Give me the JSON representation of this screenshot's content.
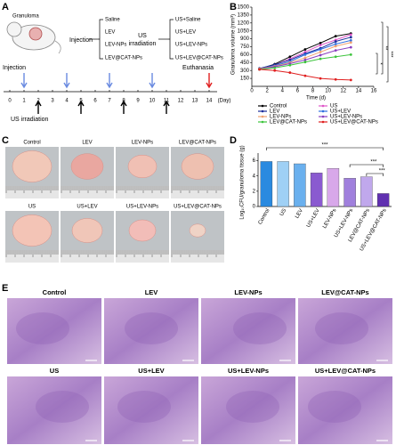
{
  "panel_labels": [
    "A",
    "B",
    "C",
    "D",
    "E"
  ],
  "panel_a": {
    "mouse_label": "Granuloma",
    "injection": "Injection",
    "groups": [
      "Saline",
      "LEV",
      "LEV-NPs",
      "LEV@CAT-NPs"
    ],
    "us_irradiation": [
      "US",
      "irradiation"
    ],
    "us_groups": [
      "US+Saline",
      "US+LEV",
      "US+LEV-NPs",
      "US+LEV@CAT-NPs"
    ],
    "timeline": {
      "days": [
        0,
        1,
        2,
        3,
        4,
        5,
        6,
        7,
        8,
        9,
        10,
        11,
        12,
        13,
        14
      ],
      "unit": "(Day)",
      "injection_label": "Injection",
      "us_label": "US irradiation",
      "euthanasia_label": "Euthanasia",
      "injection_days": [
        1,
        4,
        7,
        10
      ],
      "us_days": [
        2,
        5,
        8,
        11
      ],
      "euthanasia_days": [
        14
      ]
    }
  },
  "chart_data": [
    {
      "type": "line",
      "ylabel": "Granuloma volume (mm³)",
      "xlabel": "Time (d)",
      "x": [
        1,
        3,
        5,
        7,
        9,
        11,
        13
      ],
      "xlim": [
        0,
        16
      ],
      "xticks": [
        0,
        2,
        4,
        6,
        8,
        10,
        12,
        14,
        16
      ],
      "ylim": [
        0,
        1500
      ],
      "yticks": [
        150,
        300,
        450,
        600,
        750,
        900,
        1050,
        1200,
        1350,
        1500
      ],
      "series": [
        {
          "name": "Control",
          "color": "#000000",
          "values": [
            330,
            420,
            560,
            700,
            820,
            950,
            1000
          ]
        },
        {
          "name": "US",
          "color": "#e056c8",
          "values": [
            320,
            400,
            520,
            650,
            780,
            880,
            980
          ]
        },
        {
          "name": "LEV",
          "color": "#1a2a9a",
          "values": [
            340,
            410,
            500,
            620,
            720,
            850,
            930
          ]
        },
        {
          "name": "US+LEV",
          "color": "#2f6fe0",
          "values": [
            330,
            390,
            470,
            600,
            700,
            800,
            870
          ]
        },
        {
          "name": "LEV-NPs",
          "color": "#f0a070",
          "values": [
            330,
            380,
            450,
            540,
            650,
            760,
            830
          ]
        },
        {
          "name": "US+LEV-NPs",
          "color": "#8a3fc0",
          "values": [
            320,
            370,
            430,
            500,
            590,
            680,
            740
          ]
        },
        {
          "name": "LEV@CAT-NPs",
          "color": "#3cc43c",
          "values": [
            320,
            350,
            400,
            460,
            520,
            560,
            600
          ]
        },
        {
          "name": "US+LEV@CAT-NPs",
          "color": "#e02020",
          "values": [
            320,
            300,
            260,
            200,
            150,
            130,
            120
          ]
        }
      ],
      "annotations": [
        "*",
        "**",
        "***"
      ]
    },
    {
      "type": "bar",
      "ylabel": "Log₁₀CFU/granuloma tissue (g)",
      "categories": [
        "Control",
        "US",
        "LEV",
        "US+LEV",
        "LEV-NPs",
        "US+LEV-NPs",
        "LEV@CAT-NPs",
        "US+LEV@CAT-NPs"
      ],
      "values": [
        5.9,
        5.9,
        5.6,
        4.4,
        5.0,
        3.7,
        3.9,
        1.7
      ],
      "colors": [
        "#2a8ae0",
        "#9fd0f5",
        "#6ab0ee",
        "#8a5ad0",
        "#d8a8ea",
        "#a080dd",
        "#c0a8ec",
        "#6030b0"
      ],
      "ylim": [
        0,
        7
      ],
      "yticks": [
        0,
        2,
        4,
        6
      ],
      "annotations": [
        "***",
        "***",
        "***"
      ]
    }
  ],
  "panel_c": {
    "labels": [
      "Control",
      "LEV",
      "LEV-NPs",
      "LEV@CAT-NPs",
      "US",
      "US+LEV",
      "US+LEV-NPs",
      "US+LEV@CAT-NPs"
    ]
  },
  "panel_e": {
    "labels": [
      "Control",
      "LEV",
      "LEV-NPs",
      "LEV@CAT-NPs",
      "US",
      "US+LEV",
      "US+LEV-NPs",
      "US+LEV@CAT-NPs"
    ]
  }
}
